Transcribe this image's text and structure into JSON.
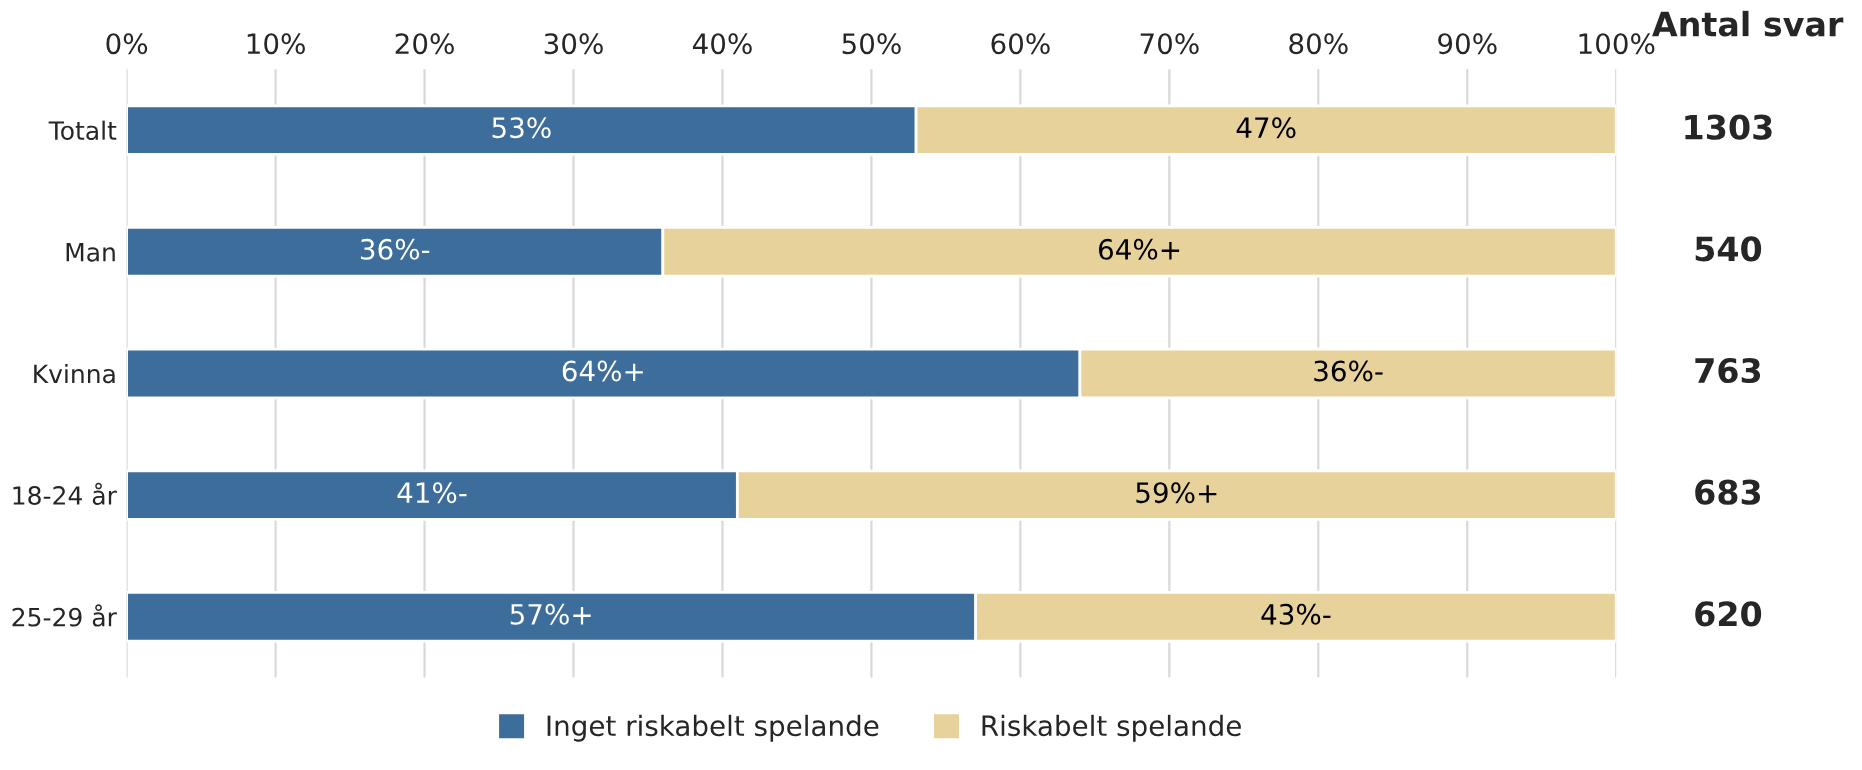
{
  "chart_data": {
    "type": "bar",
    "orientation": "horizontal",
    "stacked": true,
    "categories": [
      "Totalt",
      "Man",
      "Kvinna",
      "18-24 år",
      "25-29 år"
    ],
    "series": [
      {
        "name": "Inget riskabelt spelande",
        "color": "#3d6d9b",
        "values": [
          53,
          36,
          64,
          41,
          57
        ],
        "value_labels": [
          "53%",
          "36%-",
          "64%+",
          "41%-",
          "57%+"
        ]
      },
      {
        "name": "Riskabelt spelande",
        "color": "#e8d29c",
        "values": [
          47,
          64,
          36,
          59,
          43
        ],
        "value_labels": [
          "47%",
          "64%+",
          "36%-",
          "59%+",
          "43%-"
        ]
      }
    ],
    "xlim": [
      0,
      100
    ],
    "xticks": [
      {
        "value": 0,
        "label": "0%"
      },
      {
        "value": 10,
        "label": "10%"
      },
      {
        "value": 20,
        "label": "20%"
      },
      {
        "value": 30,
        "label": "30%"
      },
      {
        "value": 40,
        "label": "40%"
      },
      {
        "value": 50,
        "label": "50%"
      },
      {
        "value": 60,
        "label": "60%"
      },
      {
        "value": 70,
        "label": "70%"
      },
      {
        "value": 80,
        "label": "80%"
      },
      {
        "value": 90,
        "label": "90%"
      },
      {
        "value": 100,
        "label": "100%"
      }
    ],
    "grid": "x",
    "legend": "bottom",
    "annotations": [
      "Antal svar",
      "1303",
      "540",
      "763",
      "683",
      "620"
    ]
  }
}
